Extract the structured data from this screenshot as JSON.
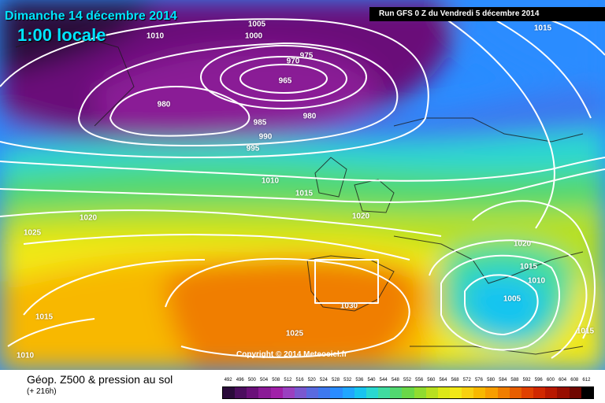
{
  "header": {
    "date": "Dimanche 14 décembre 2014",
    "time": "1:00 locale",
    "run": "Run GFS 0 Z du Vendredi 5 décembre 2014"
  },
  "copyright": "Copyright © 2014 Meteociel.fr",
  "legend": {
    "title": "Géop. Z500 & pression au sol",
    "subtitle": "(+ 216h)",
    "scale": [
      "492",
      "496",
      "500",
      "504",
      "508",
      "512",
      "516",
      "520",
      "524",
      "528",
      "532",
      "536",
      "540",
      "544",
      "548",
      "552",
      "556",
      "560",
      "564",
      "568",
      "572",
      "576",
      "580",
      "584",
      "588",
      "592",
      "596",
      "600",
      "604",
      "608",
      "612"
    ],
    "colors": [
      "#2a0b3a",
      "#4b0e5e",
      "#6a1079",
      "#8a1a96",
      "#a020a8",
      "#9a40c0",
      "#7a58d0",
      "#5a6ae0",
      "#3e78ee",
      "#2a8cff",
      "#20a6ff",
      "#18c4f0",
      "#2ad8d0",
      "#40dca0",
      "#52d870",
      "#6ad848",
      "#90dc30",
      "#b8e020",
      "#dce818",
      "#f2e818",
      "#f8d010",
      "#f8b800",
      "#f89e00",
      "#f07e00",
      "#e85e00",
      "#e04000",
      "#d02800",
      "#b81800",
      "#980e00",
      "#700600",
      "#000000"
    ]
  },
  "isobars": [
    {
      "text": "1005"
    },
    {
      "text": "1000"
    },
    {
      "text": "1010"
    },
    {
      "text": "975"
    },
    {
      "text": "970"
    },
    {
      "text": "965"
    },
    {
      "text": "980"
    },
    {
      "text": "985"
    },
    {
      "text": "980"
    },
    {
      "text": "990"
    },
    {
      "text": "995"
    },
    {
      "text": "1010"
    },
    {
      "text": "1015"
    },
    {
      "text": "1020"
    },
    {
      "text": "1025"
    },
    {
      "text": "1020"
    },
    {
      "text": "1015"
    },
    {
      "text": "1010"
    },
    {
      "text": "1030"
    },
    {
      "text": "1025"
    },
    {
      "text": "1020"
    },
    {
      "text": "1015"
    },
    {
      "text": "1010"
    },
    {
      "text": "1005"
    },
    {
      "text": "1015"
    },
    {
      "text": "1015"
    }
  ]
}
